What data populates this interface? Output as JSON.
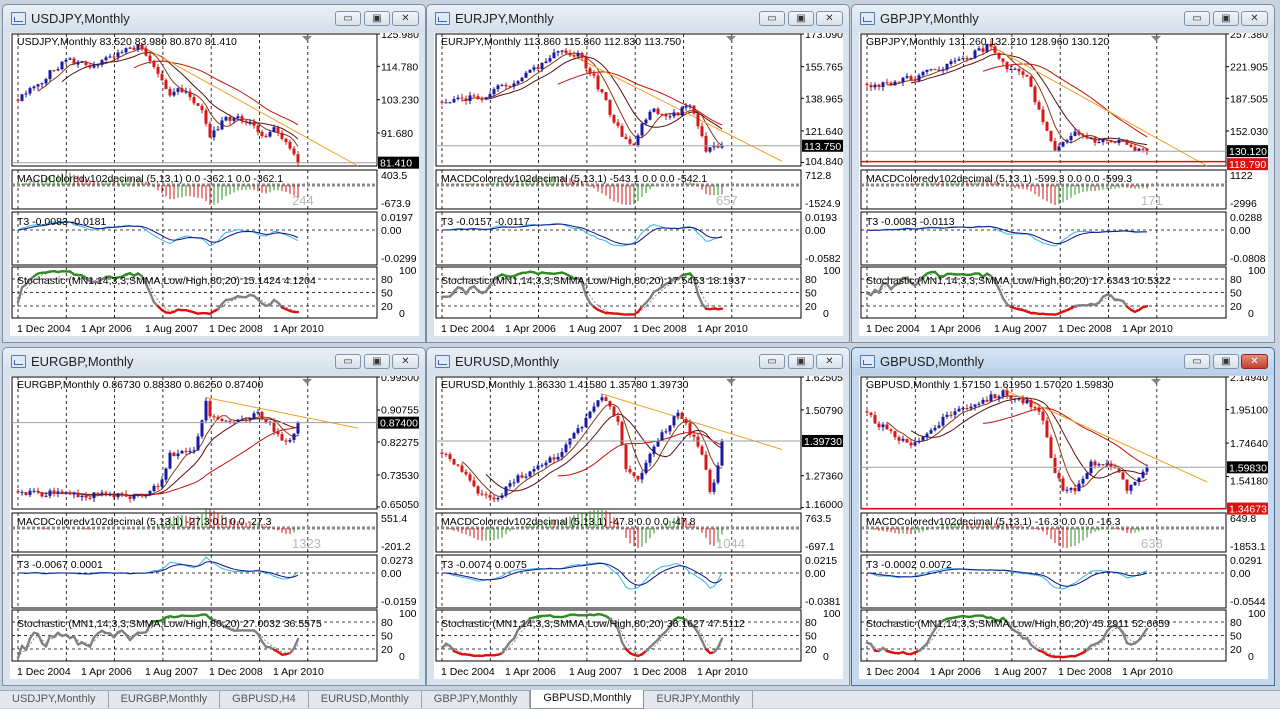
{
  "windows": [
    {
      "title": "USDJPY,Monthly",
      "active": false,
      "ohlc_label": "USDJPY,Monthly  83.520 83.980 80.870 81.410",
      "price_axis": {
        "max": 125.98,
        "min": 80.25,
        "ticks": [
          "125.980",
          "114.780",
          "103.230",
          "91.680"
        ]
      },
      "current_price": "81.410",
      "support_price": null,
      "macd": {
        "label": "MACDColoredv102decimal (5,13,1) 0.0 -362.1 0.0 -362.1",
        "axis": [
          "403.5",
          "-673.9"
        ],
        "watermark": "244"
      },
      "t3": {
        "label": "T3 -0.0083 -0.0181",
        "axis": [
          "0.0197",
          "0.00",
          "-0.0299"
        ]
      },
      "stoch": {
        "label": "Stochastic (MN1,14,3,3,SMMA,Low/High,80,20) 15.1424 4.1204"
      },
      "price_path": [
        [
          0,
          103
        ],
        [
          6,
          110
        ],
        [
          12,
          117
        ],
        [
          18,
          115
        ],
        [
          24,
          118
        ],
        [
          30,
          122
        ],
        [
          34,
          114
        ],
        [
          38,
          104
        ],
        [
          40,
          108
        ],
        [
          46,
          100
        ],
        [
          48,
          90
        ],
        [
          52,
          97
        ],
        [
          58,
          96
        ],
        [
          62,
          90
        ],
        [
          64,
          93
        ],
        [
          67,
          88
        ],
        [
          70,
          81.4
        ]
      ]
    },
    {
      "title": "EURJPY,Monthly",
      "active": false,
      "ohlc_label": "EURJPY,Monthly  113.860 115.860 112.830 113.750",
      "price_axis": {
        "max": 173.09,
        "min": 103.0,
        "ticks": [
          "173.090",
          "155.765",
          "138.965",
          "121.640",
          "104.840"
        ]
      },
      "current_price": "113.750",
      "support_price": null,
      "macd": {
        "label": "MACDColoredv102decimal (5,13,1) -543.1 0.0 0.0 -542.1",
        "axis": [
          "712.8",
          "-1524.9"
        ],
        "watermark": "657"
      },
      "t3": {
        "label": "T3 -0.0157 -0.0117",
        "axis": [
          "0.0193",
          "0.00",
          "-0.0582"
        ]
      },
      "stoch": {
        "label": "Stochastic (MN1,14,3,3,SMMA,Low/High,80,20) 17.5453 18.1937"
      },
      "price_path": [
        [
          0,
          138
        ],
        [
          10,
          140
        ],
        [
          20,
          150
        ],
        [
          30,
          165
        ],
        [
          34,
          162
        ],
        [
          38,
          150
        ],
        [
          45,
          118
        ],
        [
          48,
          115
        ],
        [
          52,
          133
        ],
        [
          58,
          130
        ],
        [
          62,
          135
        ],
        [
          64,
          125
        ],
        [
          66,
          112
        ],
        [
          70,
          113.75
        ]
      ]
    },
    {
      "title": "GBPJPY,Monthly",
      "active": false,
      "ohlc_label": "GBPJPY,Monthly  131.260 132.210 128.960 130.120",
      "price_axis": {
        "max": 257.38,
        "min": 114.0,
        "ticks": [
          "257.380",
          "221.905",
          "187.505",
          "152.030"
        ]
      },
      "current_price": "130.120",
      "support_price": "118.790",
      "macd": {
        "label": "MACDColoredv102decimal (5,13,1) -599.3 0.0 0.0 -599.3",
        "axis": [
          "1122",
          "-2996"
        ],
        "watermark": "171"
      },
      "t3": {
        "label": "T3 -0.0083 -0.0113",
        "axis": [
          "0.0288",
          "0.00",
          "-0.0808"
        ]
      },
      "stoch": {
        "label": "Stochastic (MN1,14,3,3,SMMA,Low/High,80,20) 17.6343 10.5322"
      },
      "price_path": [
        [
          0,
          200
        ],
        [
          12,
          210
        ],
        [
          24,
          230
        ],
        [
          31,
          245
        ],
        [
          34,
          225
        ],
        [
          40,
          210
        ],
        [
          44,
          160
        ],
        [
          47,
          128
        ],
        [
          52,
          150
        ],
        [
          58,
          140
        ],
        [
          64,
          140
        ],
        [
          67,
          130
        ],
        [
          70,
          130.12
        ]
      ]
    },
    {
      "title": "EURGBP,Monthly",
      "active": false,
      "ohlc_label": "EURGBP,Monthly  0.86730 0.88380 0.86250 0.87400",
      "price_axis": {
        "max": 0.995,
        "min": 0.645,
        "ticks": [
          "0.99500",
          "0.90755",
          "0.82275",
          "0.73530",
          "0.65050"
        ]
      },
      "current_price": "0.87400",
      "support_price": null,
      "macd": {
        "label": "MACDColoredv102decimal (5,13,1) -27.3 0.0 0.0 -27.3",
        "axis": [
          "551.4",
          "-201.2"
        ],
        "watermark": "1323"
      },
      "t3": {
        "label": "T3 -0.0067 0.0001",
        "axis": [
          "0.0273",
          "0.00",
          "-0.0159"
        ]
      },
      "stoch": {
        "label": "Stochastic (MN1,14,3,3,SMMA,Low/High,80,20) 27.0032 36.5575"
      },
      "price_path": [
        [
          0,
          0.69
        ],
        [
          20,
          0.68
        ],
        [
          32,
          0.68
        ],
        [
          36,
          0.72
        ],
        [
          38,
          0.79
        ],
        [
          44,
          0.8
        ],
        [
          47,
          0.93
        ],
        [
          48,
          0.89
        ],
        [
          55,
          0.88
        ],
        [
          60,
          0.9
        ],
        [
          63,
          0.87
        ],
        [
          66,
          0.83
        ],
        [
          68,
          0.82
        ],
        [
          70,
          0.874
        ]
      ]
    },
    {
      "title": "EURUSD,Monthly",
      "active": false,
      "ohlc_label": "EURUSD,Monthly  1.36330 1.41580 1.35780 1.39730",
      "price_axis": {
        "max": 1.62505,
        "min": 1.155,
        "ticks": [
          "1.62505",
          "1.50790",
          "1.27360",
          "1.16000"
        ]
      },
      "current_price": "1.39730",
      "support_price": null,
      "macd": {
        "label": "MACDColoredv102decimal (5,13,1) -47.8 0.0 0.0 -47.8",
        "axis": [
          "763.5",
          "-697.1"
        ],
        "watermark": "1044"
      },
      "t3": {
        "label": "T3 -0.0074 0.0075",
        "axis": [
          "0.0215",
          "0.00",
          "-0.0381"
        ]
      },
      "stoch": {
        "label": "Stochastic (MN1,14,3,3,SMMA,Low/High,80,20) 36.1627 47.5112"
      },
      "price_path": [
        [
          0,
          1.36
        ],
        [
          4,
          1.3
        ],
        [
          10,
          1.2
        ],
        [
          14,
          1.19
        ],
        [
          18,
          1.26
        ],
        [
          24,
          1.3
        ],
        [
          30,
          1.36
        ],
        [
          36,
          1.47
        ],
        [
          40,
          1.56
        ],
        [
          44,
          1.47
        ],
        [
          46,
          1.3
        ],
        [
          49,
          1.27
        ],
        [
          55,
          1.42
        ],
        [
          59,
          1.5
        ],
        [
          62,
          1.43
        ],
        [
          65,
          1.35
        ],
        [
          67,
          1.22
        ],
        [
          69,
          1.3
        ],
        [
          70,
          1.397
        ]
      ]
    },
    {
      "title": "GBPUSD,Monthly",
      "active": true,
      "ohlc_label": "GBPUSD,Monthly  1.57150 1.61950 1.57020 1.59830",
      "price_axis": {
        "max": 2.1494,
        "min": 1.344,
        "ticks": [
          "2.14940",
          "1.95100",
          "1.74640",
          "1.54180"
        ]
      },
      "current_price": "1.59830",
      "support_price": "1.34673",
      "macd": {
        "label": "MACDColoredv102decimal (5,13,1) -16.3 0.0 0.0 -16.3",
        "axis": [
          "649.8",
          "-1853.1"
        ],
        "watermark": "638"
      },
      "t3": {
        "label": "T3 -0.0002 0.0072",
        "axis": [
          "0.0291",
          "0.00",
          "-0.0544"
        ]
      },
      "stoch": {
        "label": "Stochastic (MN1,14,3,3,SMMA,Low/High,80,20) 45.2911 52.6659"
      },
      "price_path": [
        [
          0,
          1.92
        ],
        [
          6,
          1.8
        ],
        [
          10,
          1.74
        ],
        [
          14,
          1.78
        ],
        [
          20,
          1.92
        ],
        [
          26,
          1.98
        ],
        [
          34,
          2.05
        ],
        [
          40,
          1.99
        ],
        [
          44,
          1.9
        ],
        [
          46,
          1.65
        ],
        [
          49,
          1.45
        ],
        [
          52,
          1.46
        ],
        [
          56,
          1.62
        ],
        [
          60,
          1.63
        ],
        [
          63,
          1.55
        ],
        [
          65,
          1.46
        ],
        [
          68,
          1.55
        ],
        [
          70,
          1.598
        ]
      ]
    }
  ],
  "stoch_axis": [
    "100",
    "80",
    "50",
    "20",
    "0"
  ],
  "date_labels": [
    "1 Dec 2004",
    "1 Apr 2006",
    "1 Aug 2007",
    "1 Dec 2008",
    "1 Apr 2010"
  ],
  "window_buttons": {
    "minimize": "▭",
    "restore": "▣",
    "close": "✕"
  },
  "tabs": [
    "USDJPY,Monthly",
    "EURGBP,Monthly",
    "GBPUSD,H4",
    "EURUSD,Monthly",
    "GBPJPY,Monthly",
    "GBPUSD,Monthly",
    "EURJPY,Monthly"
  ],
  "active_tab": 5,
  "colors": {
    "up_candle": "#1a1aa0",
    "down_candle": "#d41818",
    "ma_fast": "#8b3a0e",
    "ma_mid": "#5a1010",
    "ma_slow": "#c81010",
    "trend": "#f0a020",
    "stoch": "#808080",
    "stoch_high": "#2e8b22",
    "stoch_low": "#e01010",
    "t3_fast": "#33b8e0",
    "t3_slow": "#10108a",
    "current_bg": "#000000",
    "support_bg": "#e01010"
  }
}
